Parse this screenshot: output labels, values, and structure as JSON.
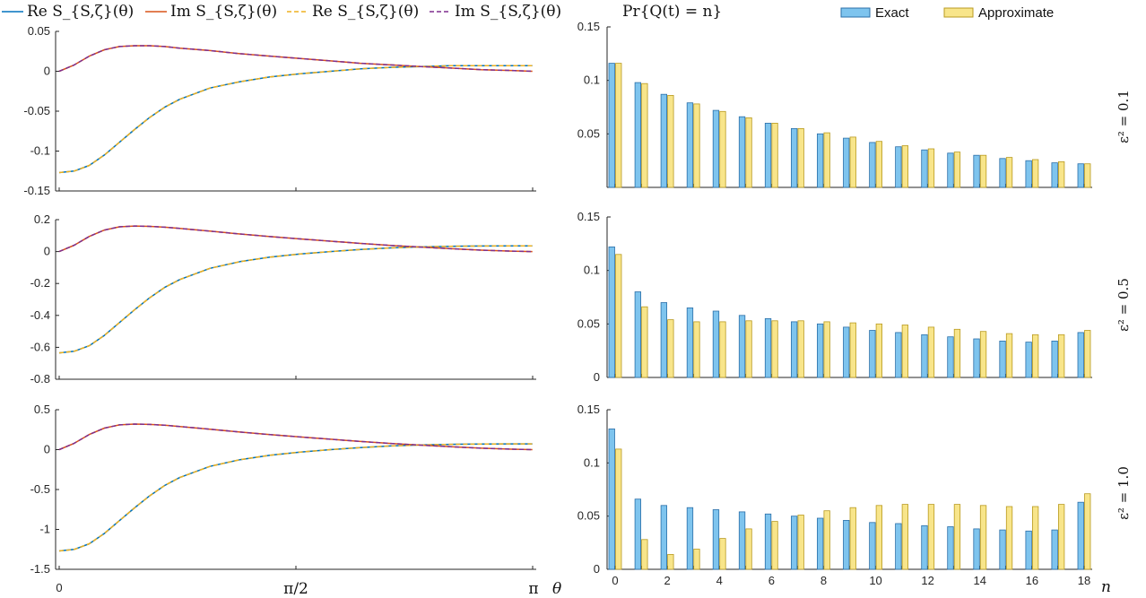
{
  "legend_left": [
    {
      "label": "Re S_{S,ζ}(θ)",
      "color": "#0072BD",
      "dash": "solid"
    },
    {
      "label": "Im S_{S,ζ}(θ)",
      "color": "#D95319",
      "dash": "solid"
    },
    {
      "label": "Re S_{S,ζ}(θ)",
      "color": "#EDB120",
      "dash": "dashed"
    },
    {
      "label": "Im S_{S,ζ}(θ)",
      "color": "#7E2F8E",
      "dash": "dashed"
    }
  ],
  "legend_right": [
    {
      "label": "Exact",
      "color": "#7EC4EE",
      "edge": "#2B6FA8"
    },
    {
      "label": "Approximate",
      "color": "#F8E58A",
      "edge": "#B89A20"
    }
  ],
  "right_ylabel": "Pr{Q(t) = n}",
  "right_xlabel": "n",
  "left_xlabel": "θ",
  "left_xticks": [
    "0",
    "π/2",
    "π"
  ],
  "panel_labels": [
    "ε² = 0.1",
    "ε² = 0.5",
    "ε² = 1.0"
  ],
  "chart_data": [
    {
      "type": "line",
      "x": "theta from 0 to π",
      "xlim": [
        0,
        3.14159
      ],
      "ylim": [
        -0.15,
        0.05
      ],
      "yticks": [
        "0.05",
        "0",
        "-0.05",
        "-0.1",
        "-0.15"
      ],
      "series": [
        {
          "name": "Re S_{S,ζ}(θ)",
          "x": [
            0,
            0.1,
            0.2,
            0.3,
            0.4,
            0.5,
            0.6,
            0.7,
            0.8,
            1.0,
            1.2,
            1.4,
            1.6,
            1.8,
            2.0,
            2.2,
            2.4,
            2.6,
            2.8,
            3.0,
            3.14
          ],
          "y": [
            -0.127,
            -0.125,
            -0.118,
            -0.105,
            -0.089,
            -0.073,
            -0.058,
            -0.045,
            -0.035,
            -0.021,
            -0.013,
            -0.007,
            -0.003,
            0.0,
            0.003,
            0.005,
            0.006,
            0.007,
            0.007,
            0.007,
            0.007
          ]
        },
        {
          "name": "Im S_{S,ζ}(θ)",
          "x": [
            0,
            0.1,
            0.2,
            0.3,
            0.4,
            0.5,
            0.6,
            0.7,
            0.8,
            1.0,
            1.2,
            1.4,
            1.6,
            1.8,
            2.0,
            2.2,
            2.4,
            2.6,
            2.8,
            3.0,
            3.14
          ],
          "y": [
            0,
            0.008,
            0.019,
            0.027,
            0.031,
            0.032,
            0.032,
            0.031,
            0.029,
            0.026,
            0.022,
            0.019,
            0.016,
            0.013,
            0.01,
            0.008,
            0.006,
            0.004,
            0.002,
            0.001,
            0.0
          ]
        }
      ]
    },
    {
      "type": "line",
      "x": "theta from 0 to π",
      "xlim": [
        0,
        3.14159
      ],
      "ylim": [
        -0.8,
        0.2
      ],
      "yticks": [
        "0.2",
        "0",
        "-0.2",
        "-0.4",
        "-0.6",
        "-0.8"
      ],
      "series": [
        {
          "name": "Re S_{S,ζ}(θ)",
          "x": [
            0,
            0.1,
            0.2,
            0.3,
            0.4,
            0.5,
            0.6,
            0.7,
            0.8,
            1.0,
            1.2,
            1.4,
            1.6,
            1.8,
            2.0,
            2.2,
            2.4,
            2.6,
            2.8,
            3.0,
            3.14
          ],
          "y": [
            -0.635,
            -0.625,
            -0.59,
            -0.525,
            -0.445,
            -0.365,
            -0.29,
            -0.225,
            -0.175,
            -0.105,
            -0.063,
            -0.035,
            -0.015,
            0.0,
            0.013,
            0.023,
            0.029,
            0.033,
            0.035,
            0.036,
            0.036
          ]
        },
        {
          "name": "Im S_{S,ζ}(θ)",
          "x": [
            0,
            0.1,
            0.2,
            0.3,
            0.4,
            0.5,
            0.6,
            0.7,
            0.8,
            1.0,
            1.2,
            1.4,
            1.6,
            1.8,
            2.0,
            2.2,
            2.4,
            2.6,
            2.8,
            3.0,
            3.14
          ],
          "y": [
            0,
            0.04,
            0.095,
            0.135,
            0.155,
            0.16,
            0.158,
            0.153,
            0.145,
            0.128,
            0.11,
            0.094,
            0.079,
            0.065,
            0.051,
            0.039,
            0.028,
            0.018,
            0.009,
            0.003,
            0.0
          ]
        }
      ]
    },
    {
      "type": "line",
      "x": "theta from 0 to π",
      "xlim": [
        0,
        3.14159
      ],
      "ylim": [
        -1.5,
        0.5
      ],
      "yticks": [
        "0.5",
        "0",
        "-0.5",
        "-1",
        "-1.5"
      ],
      "series": [
        {
          "name": "Re S_{S,ζ}(θ)",
          "x": [
            0,
            0.1,
            0.2,
            0.3,
            0.4,
            0.5,
            0.6,
            0.7,
            0.8,
            1.0,
            1.2,
            1.4,
            1.6,
            1.8,
            2.0,
            2.2,
            2.4,
            2.6,
            2.8,
            3.0,
            3.14
          ],
          "y": [
            -1.27,
            -1.25,
            -1.18,
            -1.05,
            -0.89,
            -0.73,
            -0.58,
            -0.45,
            -0.35,
            -0.21,
            -0.126,
            -0.07,
            -0.03,
            0.0,
            0.026,
            0.046,
            0.058,
            0.066,
            0.07,
            0.072,
            0.072
          ]
        },
        {
          "name": "Im S_{S,ζ}(θ)",
          "x": [
            0,
            0.1,
            0.2,
            0.3,
            0.4,
            0.5,
            0.6,
            0.7,
            0.8,
            1.0,
            1.2,
            1.4,
            1.6,
            1.8,
            2.0,
            2.2,
            2.4,
            2.6,
            2.8,
            3.0,
            3.14
          ],
          "y": [
            0,
            0.08,
            0.19,
            0.27,
            0.31,
            0.32,
            0.316,
            0.306,
            0.29,
            0.256,
            0.22,
            0.188,
            0.158,
            0.13,
            0.102,
            0.078,
            0.056,
            0.036,
            0.018,
            0.006,
            0.0
          ]
        }
      ]
    },
    {
      "type": "bar",
      "categories": [
        0,
        1,
        2,
        3,
        4,
        5,
        6,
        7,
        8,
        9,
        10,
        11,
        12,
        13,
        14,
        15,
        16,
        17,
        18
      ],
      "xticks": [
        "0",
        "2",
        "4",
        "6",
        "8",
        "10",
        "12",
        "14",
        "16",
        "18"
      ],
      "ylim": [
        0,
        0.15
      ],
      "yticks": [
        "0.15",
        "0.1",
        "0.05"
      ],
      "series": [
        {
          "name": "Exact",
          "values": [
            0.116,
            0.098,
            0.087,
            0.079,
            0.072,
            0.066,
            0.06,
            0.055,
            0.05,
            0.046,
            0.042,
            0.038,
            0.035,
            0.032,
            0.03,
            0.027,
            0.025,
            0.023,
            0.022
          ]
        },
        {
          "name": "Approximate",
          "values": [
            0.116,
            0.097,
            0.086,
            0.078,
            0.071,
            0.065,
            0.06,
            0.055,
            0.051,
            0.047,
            0.043,
            0.039,
            0.036,
            0.033,
            0.03,
            0.028,
            0.026,
            0.024,
            0.022
          ]
        }
      ]
    },
    {
      "type": "bar",
      "categories": [
        0,
        1,
        2,
        3,
        4,
        5,
        6,
        7,
        8,
        9,
        10,
        11,
        12,
        13,
        14,
        15,
        16,
        17,
        18
      ],
      "xticks": [
        "0",
        "2",
        "4",
        "6",
        "8",
        "10",
        "12",
        "14",
        "16",
        "18"
      ],
      "ylim": [
        0,
        0.15
      ],
      "yticks": [
        "0.15",
        "0.1",
        "0.05",
        "0"
      ],
      "series": [
        {
          "name": "Exact",
          "values": [
            0.122,
            0.08,
            0.07,
            0.065,
            0.062,
            0.058,
            0.055,
            0.052,
            0.05,
            0.047,
            0.044,
            0.042,
            0.04,
            0.038,
            0.036,
            0.034,
            0.033,
            0.034,
            0.042
          ]
        },
        {
          "name": "Approximate",
          "values": [
            0.115,
            0.066,
            0.054,
            0.052,
            0.052,
            0.053,
            0.053,
            0.053,
            0.052,
            0.051,
            0.05,
            0.049,
            0.047,
            0.045,
            0.043,
            0.041,
            0.04,
            0.04,
            0.044
          ]
        }
      ]
    },
    {
      "type": "bar",
      "categories": [
        0,
        1,
        2,
        3,
        4,
        5,
        6,
        7,
        8,
        9,
        10,
        11,
        12,
        13,
        14,
        15,
        16,
        17,
        18
      ],
      "xticks": [
        "0",
        "2",
        "4",
        "6",
        "8",
        "10",
        "12",
        "14",
        "16",
        "18"
      ],
      "ylim": [
        0,
        0.15
      ],
      "yticks": [
        "0.15",
        "0.1",
        "0.05",
        "0"
      ],
      "series": [
        {
          "name": "Exact",
          "values": [
            0.132,
            0.066,
            0.06,
            0.058,
            0.056,
            0.054,
            0.052,
            0.05,
            0.048,
            0.046,
            0.044,
            0.043,
            0.041,
            0.04,
            0.038,
            0.037,
            0.036,
            0.037,
            0.063
          ]
        },
        {
          "name": "Approximate",
          "values": [
            0.113,
            0.028,
            0.014,
            0.019,
            0.029,
            0.038,
            0.045,
            0.051,
            0.055,
            0.058,
            0.06,
            0.061,
            0.061,
            0.061,
            0.06,
            0.059,
            0.059,
            0.061,
            0.071
          ]
        }
      ]
    }
  ]
}
